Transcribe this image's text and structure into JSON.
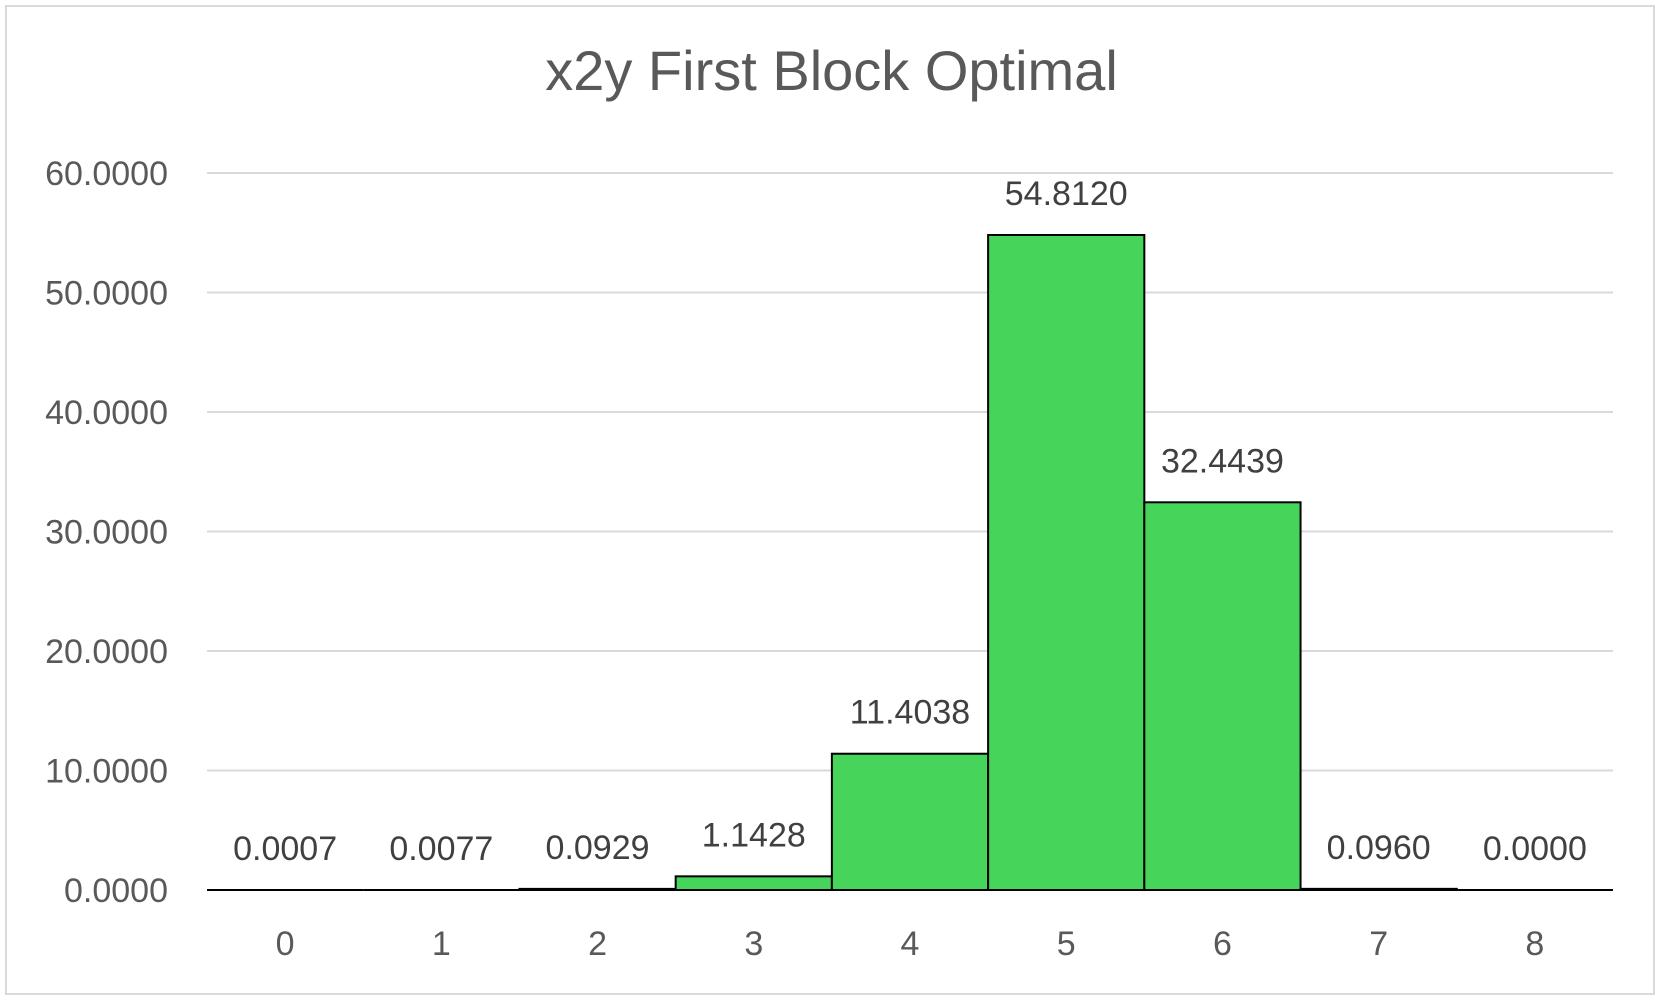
{
  "chart_data": {
    "type": "bar",
    "title": "x2y First Block Optimal",
    "xlabel": "",
    "ylabel": "",
    "categories": [
      "0",
      "1",
      "2",
      "3",
      "4",
      "5",
      "6",
      "7",
      "8"
    ],
    "values": [
      0.0007,
      0.0077,
      0.0929,
      1.1428,
      11.4038,
      54.812,
      32.4439,
      0.096,
      0.0
    ],
    "data_labels": [
      "0.0007",
      "0.0077",
      "0.0929",
      "1.1428",
      "11.4038",
      "54.8120",
      "32.4439",
      "0.0960",
      "0.0000"
    ],
    "ylim": [
      0,
      60
    ],
    "yticks": [
      "0.0000",
      "10.0000",
      "20.0000",
      "30.0000",
      "40.0000",
      "50.0000",
      "60.0000"
    ],
    "grid": true,
    "legend": "none",
    "bar_color": "#47d45a",
    "bar_border_color": "#000000",
    "gridline_color": "#d9d9d9"
  }
}
